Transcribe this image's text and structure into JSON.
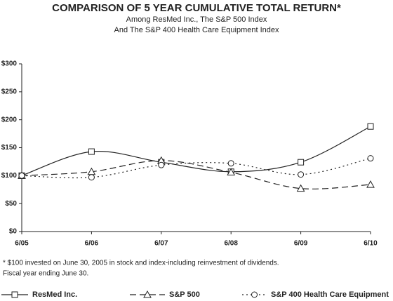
{
  "chart_data": {
    "type": "line",
    "title": "COMPARISON OF 5 YEAR CUMULATIVE TOTAL RETURN*",
    "subtitle": [
      "Among ResMed Inc., The S&P 500 Index",
      "And The S&P 400 Health Care Equipment Index"
    ],
    "notes": [
      "* $100 invested on June 30, 2005 in stock and index-including reinvestment of dividends.",
      "Fiscal year ending June 30."
    ],
    "categories": [
      "6/05",
      "6/06",
      "6/07",
      "6/08",
      "6/09",
      "6/10"
    ],
    "series": [
      {
        "name": "ResMed Inc.",
        "color": "#222222",
        "marker": "square",
        "dash": "solid",
        "values": [
          100,
          143,
          124,
          107,
          124,
          188
        ]
      },
      {
        "name": "S&P 500",
        "color": "#222222",
        "marker": "triangle",
        "dash": "dashed",
        "values": [
          100,
          107,
          127,
          106,
          77,
          84
        ]
      },
      {
        "name": "S&P 400 Health Care Equipment",
        "color": "#222222",
        "marker": "circle",
        "dash": "dotted",
        "values": [
          100,
          97,
          119,
          122,
          102,
          131
        ]
      }
    ],
    "ylim": [
      0,
      300
    ],
    "yticks": [
      {
        "value": 0,
        "label": "$0"
      },
      {
        "value": 50,
        "label": "$50"
      },
      {
        "value": 100,
        "label": "$100"
      },
      {
        "value": 150,
        "label": "$150"
      },
      {
        "value": 200,
        "label": "$200"
      },
      {
        "value": 250,
        "label": "$250"
      },
      {
        "value": 300,
        "label": "$300"
      }
    ],
    "grid": false,
    "legend": "bottom"
  }
}
